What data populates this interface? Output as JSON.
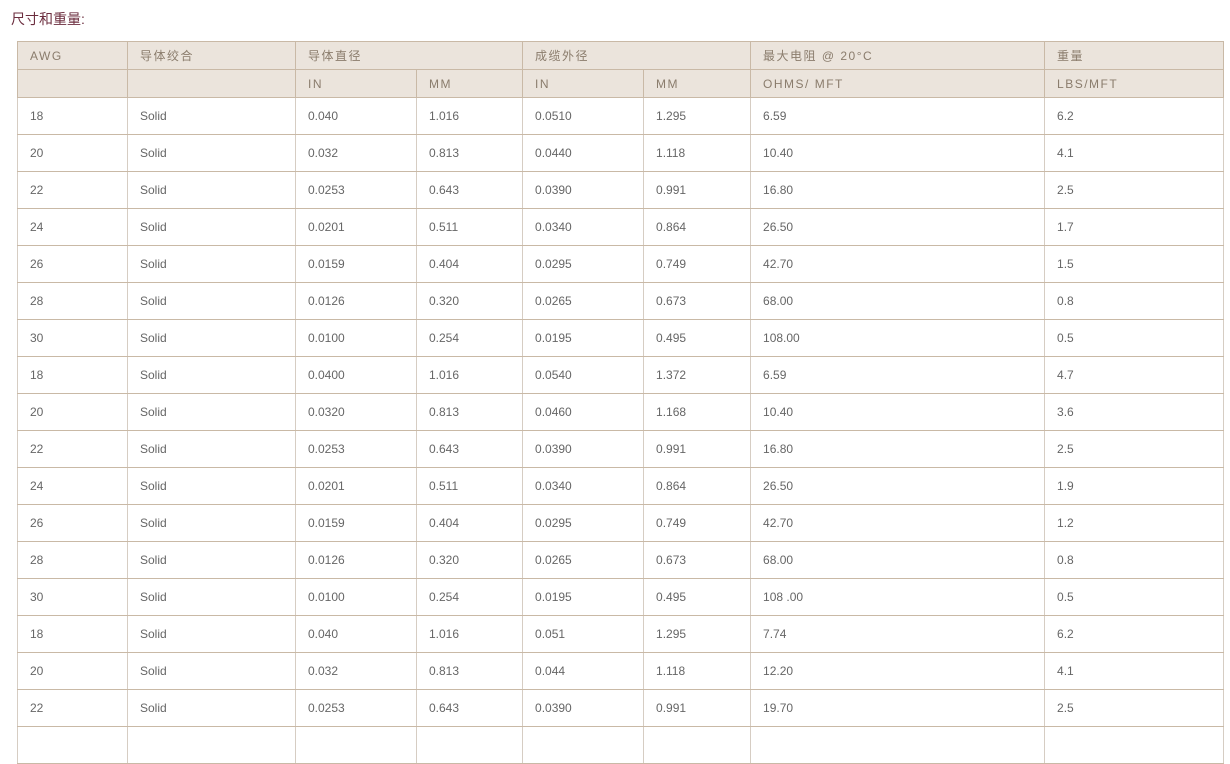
{
  "title": "尺寸和重量:",
  "header": {
    "row1": [
      "AWG",
      "导体绞合",
      "导体直径",
      "成缆外径",
      "最大电阻 @ 20°C",
      "重量"
    ],
    "row2": [
      "",
      "",
      "IN",
      "MM",
      "IN",
      "MM",
      "OHMS/ MFT",
      "LBS/MFT"
    ]
  },
  "rows": [
    [
      "18",
      "Solid",
      "0.040",
      "1.016",
      "0.0510",
      "1.295",
      "6.59",
      "6.2"
    ],
    [
      "20",
      "Solid",
      "0.032",
      "0.813",
      "0.0440",
      "1.118",
      "10.40",
      "4.1"
    ],
    [
      "22",
      "Solid",
      "0.0253",
      "0.643",
      "0.0390",
      "0.991",
      "16.80",
      "2.5"
    ],
    [
      "24",
      "Solid",
      "0.0201",
      "0.511",
      "0.0340",
      "0.864",
      "26.50",
      "1.7"
    ],
    [
      "26",
      "Solid",
      "0.0159",
      "0.404",
      "0.0295",
      "0.749",
      "42.70",
      "1.5"
    ],
    [
      "28",
      "Solid",
      "0.0126",
      "0.320",
      "0.0265",
      "0.673",
      "68.00",
      "0.8"
    ],
    [
      "30",
      "Solid",
      "0.0100",
      "0.254",
      "0.0195",
      "0.495",
      "108.00",
      "0.5"
    ],
    [
      "18",
      "Solid",
      "0.0400",
      "1.016",
      "0.0540",
      "1.372",
      "6.59",
      "4.7"
    ],
    [
      "20",
      "Solid",
      "0.0320",
      "0.813",
      "0.0460",
      "1.168",
      "10.40",
      "3.6"
    ],
    [
      "22",
      "Solid",
      "0.0253",
      "0.643",
      "0.0390",
      "0.991",
      "16.80",
      "2.5"
    ],
    [
      "24",
      "Solid",
      "0.0201",
      "0.511",
      "0.0340",
      "0.864",
      "26.50",
      "1.9"
    ],
    [
      "26",
      "Solid",
      "0.0159",
      "0.404",
      "0.0295",
      "0.749",
      "42.70",
      "1.2"
    ],
    [
      "28",
      "Solid",
      "0.0126",
      "0.320",
      "0.0265",
      "0.673",
      "68.00",
      "0.8"
    ],
    [
      "30",
      "Solid",
      "0.0100",
      "0.254",
      "0.0195",
      "0.495",
      "108 .00",
      "0.5"
    ],
    [
      "18",
      "Solid",
      "0.040",
      "1.016",
      "0.051",
      "1.295",
      "7.74",
      "6.2"
    ],
    [
      "20",
      "Solid",
      "0.032",
      "0.813",
      "0.044",
      "1.118",
      "12.20",
      "4.1"
    ],
    [
      "22",
      "Solid",
      "0.0253",
      "0.643",
      "0.0390",
      "0.991",
      "19.70",
      "2.5"
    ],
    [
      "",
      "",
      "",
      "",
      "",
      "",
      "",
      ""
    ]
  ]
}
